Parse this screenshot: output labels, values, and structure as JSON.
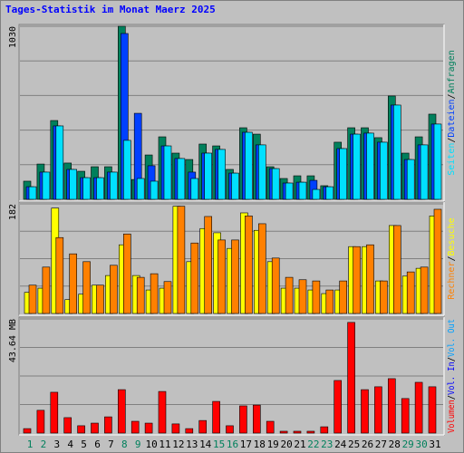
{
  "title": "Tages-Statistik im Monat Maerz 2025",
  "categories": [
    "1",
    "2",
    "3",
    "4",
    "5",
    "6",
    "7",
    "8",
    "9",
    "10",
    "11",
    "12",
    "13",
    "14",
    "15",
    "16",
    "17",
    "18",
    "19",
    "20",
    "21",
    "22",
    "23",
    "24",
    "25",
    "26",
    "27",
    "28",
    "29",
    "30",
    "31"
  ],
  "category_colors": [
    "#00805c",
    "#00805c",
    "#000000",
    "#000000",
    "#000000",
    "#000000",
    "#000000",
    "#00805c",
    "#00805c",
    "#000000",
    "#000000",
    "#000000",
    "#000000",
    "#000000",
    "#00805c",
    "#00805c",
    "#000000",
    "#000000",
    "#000000",
    "#000000",
    "#000000",
    "#00805c",
    "#00805c",
    "#000000",
    "#000000",
    "#000000",
    "#000000",
    "#000000",
    "#00805c",
    "#00805c",
    "#000000"
  ],
  "legend_separator": "/",
  "chart_data": [
    {
      "type": "bar",
      "ylim": [
        0,
        1030
      ],
      "yticks": [
        1030
      ],
      "grid_divisions": 5,
      "legend_reverse": true,
      "series": [
        {
          "name": "Anfragen",
          "color": "#00805c",
          "values": [
            108,
            210,
            469,
            216,
            167,
            194,
            194,
            1030,
            118,
            264,
            372,
            275,
            237,
            329,
            318,
            178,
            426,
            388,
            194,
            124,
            140,
            140,
            81,
            340,
            426,
            426,
            367,
            615,
            275,
            372,
            507
          ]
        },
        {
          "name": "Dateien",
          "color": "#0040ff",
          "values": [
            75,
            162,
            437,
            178,
            129,
            129,
            162,
            987,
            512,
            200,
            318,
            243,
            162,
            275,
            297,
            156,
            399,
            324,
            183,
            97,
            102,
            113,
            75,
            302,
            388,
            394,
            340,
            561,
            237,
            324,
            448
          ]
        },
        {
          "name": "Seiten",
          "color": "#00e0ff",
          "values": [
            75,
            162,
            437,
            178,
            129,
            129,
            162,
            351,
            124,
            108,
            318,
            243,
            124,
            275,
            297,
            156,
            399,
            324,
            183,
            97,
            102,
            59,
            75,
            302,
            388,
            394,
            340,
            561,
            237,
            324,
            448
          ]
        }
      ]
    },
    {
      "type": "bar",
      "ylim": [
        0,
        182
      ],
      "yticks": [
        182
      ],
      "grid_divisions": 4,
      "legend_reverse": true,
      "series": [
        {
          "name": "Besuche",
          "color": "#ffff00",
          "values": [
            35,
            42,
            175,
            23,
            32,
            47,
            63,
            114,
            63,
            39,
            42,
            178,
            86,
            141,
            134,
            108,
            167,
            138,
            86,
            42,
            42,
            39,
            33,
            39,
            111,
            111,
            54,
            146,
            62,
            75,
            162
          ]
        },
        {
          "name": "Rechner",
          "color": "#ff8000",
          "values": [
            47,
            77,
            126,
            99,
            86,
            47,
            80,
            132,
            60,
            66,
            53,
            178,
            117,
            161,
            122,
            122,
            162,
            149,
            92,
            60,
            56,
            54,
            39,
            54,
            111,
            114,
            54,
            146,
            69,
            77,
            173
          ]
        }
      ]
    },
    {
      "type": "bar",
      "ylim": [
        0,
        43.64
      ],
      "yticks": [
        {
          "value": 43.64,
          "label": "43.64 MB"
        }
      ],
      "grid_divisions": 4,
      "legend_reverse": false,
      "series": [
        {
          "name": "Volumen",
          "color": "#ff0000",
          "values": [
            1.7,
            8.7,
            15.6,
            5.9,
            2.8,
            3.8,
            6.2,
            16.6,
            4.5,
            3.8,
            15.9,
            3.5,
            1.7,
            4.8,
            12.1,
            2.8,
            10.4,
            10.7,
            4.5,
            0.7,
            0.7,
            0.7,
            2.4,
            20.1,
            42.3,
            16.6,
            17.7,
            20.8,
            13.2,
            19.4,
            17.7
          ]
        },
        {
          "name": "Vol. In",
          "color": "#0000ff",
          "values": [
            0,
            0,
            0,
            0,
            0,
            0,
            0,
            0,
            0,
            0,
            0,
            0,
            0,
            0,
            0,
            0,
            0,
            0,
            0,
            0,
            0,
            0,
            0,
            0,
            0,
            0,
            0,
            0,
            0,
            0,
            0
          ]
        },
        {
          "name": "Vol. Out",
          "color": "#00a0ff",
          "values": [
            0,
            0,
            0,
            0,
            0,
            0,
            0,
            0,
            0,
            0,
            0,
            0,
            0,
            0,
            0,
            0,
            0,
            0,
            0,
            0,
            0,
            0,
            0,
            0,
            0,
            0,
            0,
            0,
            0,
            0,
            0
          ]
        }
      ]
    }
  ]
}
